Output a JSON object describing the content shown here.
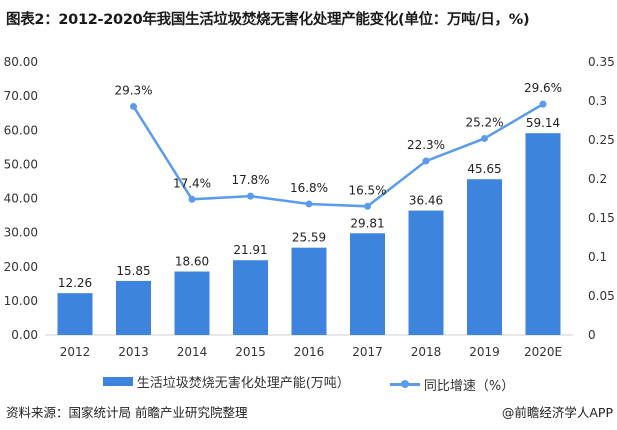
{
  "title": "图表2：2012-2020年我国生活垃圾焚烧无害化处理产能变化(单位：万吨/日，%)",
  "chart_data": {
    "type": "bar+line",
    "categories": [
      "2012",
      "2013",
      "2014",
      "2015",
      "2016",
      "2017",
      "2018",
      "2019",
      "2020E"
    ],
    "series": [
      {
        "name": "生活垃圾焚烧无害化处理产能(万吨）",
        "type": "bar",
        "axis": "left",
        "color": "#3e83de",
        "values": [
          12.26,
          15.85,
          18.6,
          21.91,
          25.59,
          29.81,
          36.46,
          45.65,
          59.14
        ],
        "labels": [
          "12.26",
          "15.85",
          "18.60",
          "21.91",
          "25.59",
          "29.81",
          "36.46",
          "45.65",
          "59.14"
        ]
      },
      {
        "name": "同比增速（%）",
        "type": "line",
        "axis": "right",
        "color": "#5b9bec",
        "values": [
          null,
          0.293,
          0.174,
          0.178,
          0.168,
          0.165,
          0.223,
          0.252,
          0.296
        ],
        "labels": [
          null,
          "29.3%",
          "17.4%",
          "17.8%",
          "16.8%",
          "16.5%",
          "22.3%",
          "25.2%",
          "29.6%"
        ]
      }
    ],
    "y_left": {
      "range": [
        0,
        80
      ],
      "ticks": [
        "0.00",
        "10.00",
        "20.00",
        "30.00",
        "40.00",
        "50.00",
        "60.00",
        "70.00",
        "80.00"
      ]
    },
    "y_right": {
      "range": [
        0,
        0.35
      ],
      "ticks": [
        "0",
        "0.05",
        "0.1",
        "0.15",
        "0.2",
        "0.25",
        "0.3",
        "0.35"
      ]
    },
    "grid": false,
    "legend_placement": "bottom"
  },
  "footer": {
    "source": "资料来源：国家统计局 前瞻产业研究院整理",
    "brand": "@前瞻经济学人APP"
  }
}
